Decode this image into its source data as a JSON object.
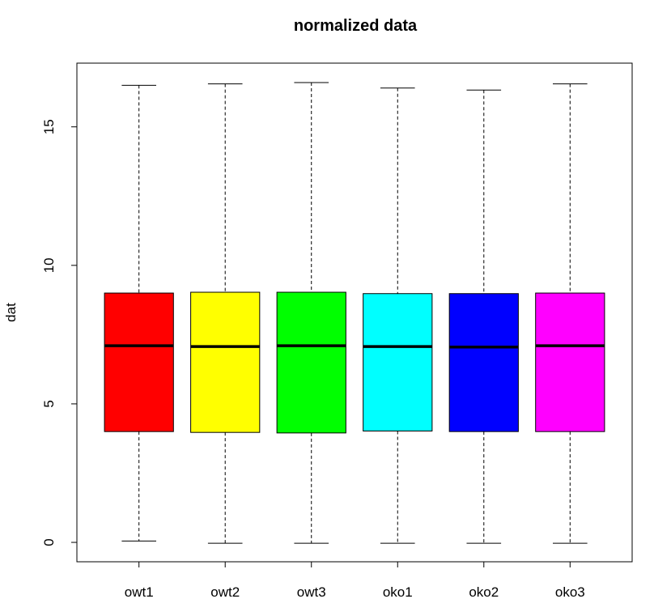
{
  "chart_data": {
    "type": "boxplot",
    "title": "normalized data",
    "xlabel": "",
    "ylabel": "dat",
    "ylim": [
      -0.7,
      17.3
    ],
    "y_ticks": [
      0,
      5,
      10,
      15
    ],
    "grid": false,
    "categories": [
      "owt1",
      "owt2",
      "owt3",
      "oko1",
      "oko2",
      "oko3"
    ],
    "series": [
      {
        "colors": [
          "#ff0000",
          "#ffff00",
          "#00ff00",
          "#00ffff",
          "#0000ff",
          "#ff00ff"
        ]
      }
    ],
    "boxes": [
      {
        "min": 0.05,
        "q1": 4.0,
        "median": 7.1,
        "q3": 9.0,
        "max": 16.5
      },
      {
        "min": -0.03,
        "q1": 3.97,
        "median": 7.07,
        "q3": 9.03,
        "max": 16.55
      },
      {
        "min": -0.03,
        "q1": 3.95,
        "median": 7.1,
        "q3": 9.03,
        "max": 16.6
      },
      {
        "min": -0.03,
        "q1": 4.02,
        "median": 7.07,
        "q3": 8.98,
        "max": 16.4
      },
      {
        "min": -0.03,
        "q1": 4.0,
        "median": 7.05,
        "q3": 8.98,
        "max": 16.33
      },
      {
        "min": -0.03,
        "q1": 4.0,
        "median": 7.1,
        "q3": 9.0,
        "max": 16.55
      }
    ]
  }
}
